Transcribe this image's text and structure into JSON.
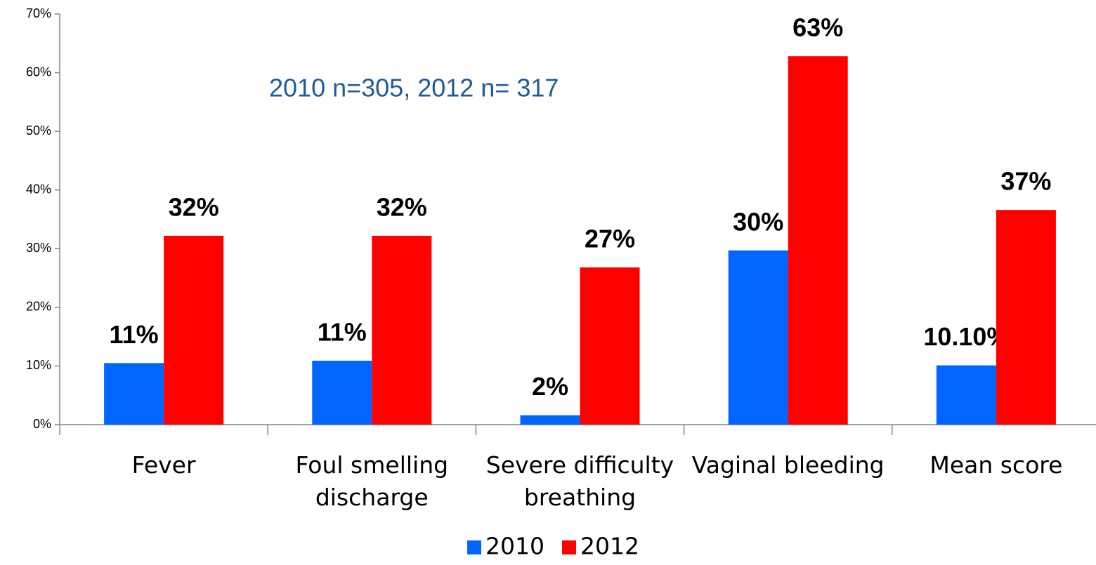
{
  "chart_data": {
    "type": "bar",
    "annotation": "2010 n=305, 2012 n= 317",
    "categories": [
      "Fever",
      "Foul smelling discharge",
      "Severe difficulty breathing",
      "Vaginal bleeding",
      "Mean score"
    ],
    "series": [
      {
        "name": "2010",
        "color": "#0066ff",
        "values": [
          10.5,
          10.9,
          1.6,
          29.7,
          10.1
        ],
        "value_labels": [
          "11%",
          "11%",
          "2%",
          "30%",
          "10.10%"
        ]
      },
      {
        "name": "2012",
        "color": "#ff0000",
        "values": [
          32.2,
          32.2,
          26.8,
          62.8,
          36.6
        ],
        "value_labels": [
          "32%",
          "32%",
          "27%",
          "63%",
          "37%"
        ]
      }
    ],
    "ylim": [
      0,
      70
    ],
    "yticks": [
      {
        "value": 0,
        "label": "0%"
      },
      {
        "value": 10,
        "label": "10%"
      },
      {
        "value": 20,
        "label": "20%"
      },
      {
        "value": 30,
        "label": "30%"
      },
      {
        "value": 40,
        "label": "40%"
      },
      {
        "value": 50,
        "label": "50%"
      },
      {
        "value": 60,
        "label": "60%"
      },
      {
        "value": 70,
        "label": "70%"
      }
    ],
    "legend": "bottom"
  }
}
